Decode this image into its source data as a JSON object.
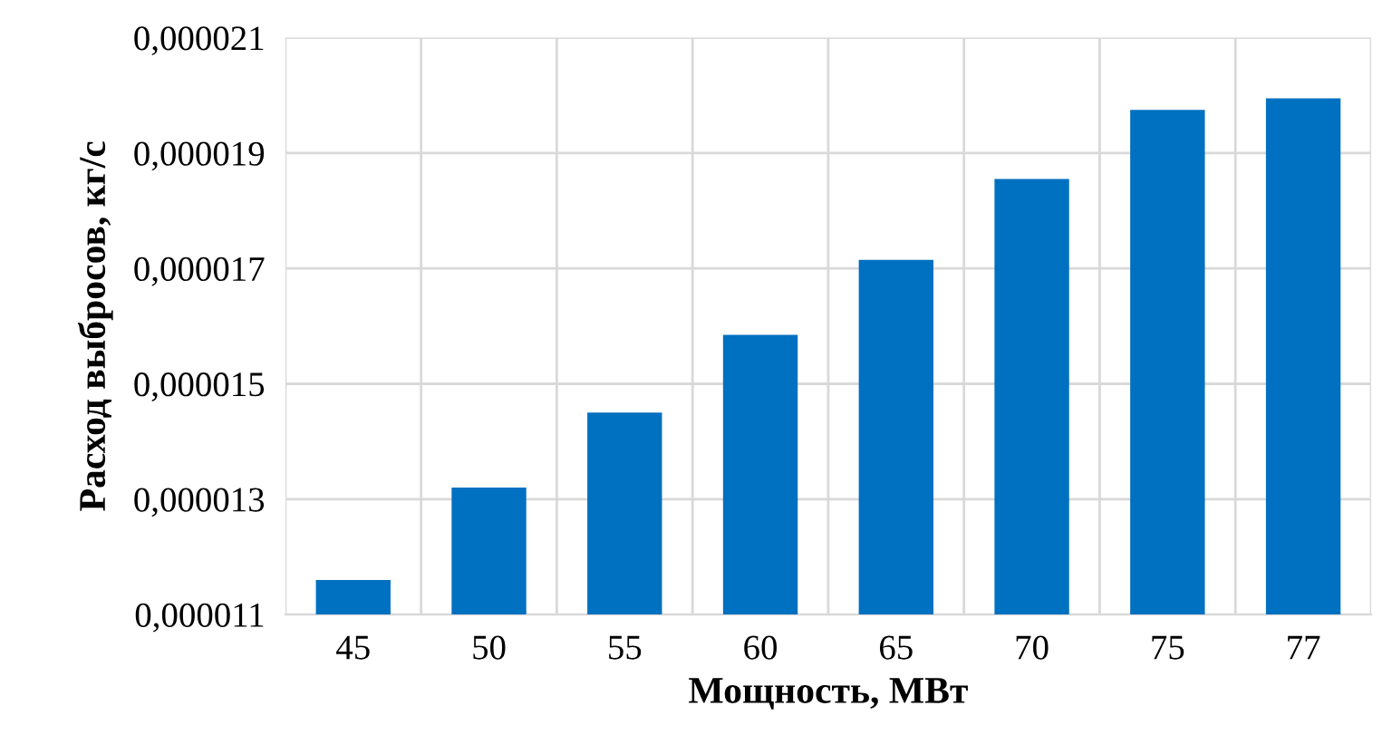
{
  "chart_data": {
    "type": "bar",
    "xlabel": "Мощность, МВт",
    "ylabel": "Расход выбросов, кг/с",
    "categories": [
      "45",
      "50",
      "55",
      "60",
      "65",
      "70",
      "75",
      "77"
    ],
    "values": [
      1.16e-05,
      1.32e-05,
      1.45e-05,
      1.585e-05,
      1.715e-05,
      1.855e-05,
      1.975e-05,
      1.995e-05
    ],
    "color": "#0070c0",
    "ylim": [
      1.1e-05,
      2.1e-05
    ],
    "yticks": [
      {
        "value": 1.1e-05,
        "label": "0,000011"
      },
      {
        "value": 1.3e-05,
        "label": "0,000013"
      },
      {
        "value": 1.5e-05,
        "label": "0,000015"
      },
      {
        "value": 1.7e-05,
        "label": "0,000017"
      },
      {
        "value": 1.9e-05,
        "label": "0,000019"
      },
      {
        "value": 2.1e-05,
        "label": "0,000021"
      }
    ],
    "grid": true
  }
}
